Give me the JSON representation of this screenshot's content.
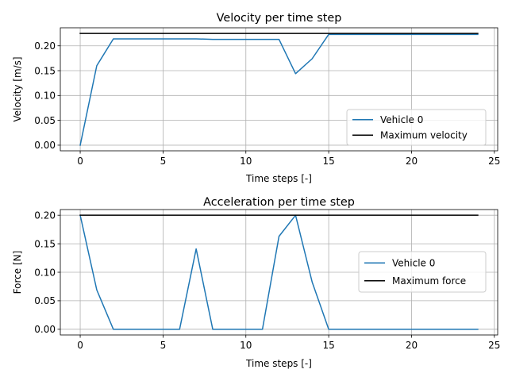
{
  "chart_data": [
    {
      "type": "line",
      "title": "Velocity per time step",
      "xlabel": "Time steps [-]",
      "ylabel": "Velocity [m/s]",
      "xlim": [
        -1.2,
        25.2
      ],
      "ylim": [
        -0.0113,
        0.2363
      ],
      "xticks": [
        0,
        5,
        10,
        15,
        20,
        25
      ],
      "yticks": [
        0.0,
        0.05,
        0.1,
        0.15,
        0.2
      ],
      "ytick_labels": [
        "0.00",
        "0.05",
        "0.10",
        "0.15",
        "0.20"
      ],
      "grid": true,
      "legend_position": "lower-right",
      "series": [
        {
          "name": "Vehicle 0",
          "color": "#1f77b4",
          "x": [
            0,
            1,
            2,
            3,
            4,
            5,
            6,
            7,
            8,
            9,
            10,
            11,
            12,
            13,
            14,
            15,
            16,
            17,
            18,
            19,
            20,
            21,
            22,
            23,
            24
          ],
          "y": [
            0.0,
            0.16,
            0.214,
            0.214,
            0.214,
            0.214,
            0.214,
            0.214,
            0.213,
            0.213,
            0.213,
            0.213,
            0.213,
            0.144,
            0.174,
            0.223,
            0.223,
            0.223,
            0.223,
            0.223,
            0.223,
            0.223,
            0.223,
            0.223,
            0.223
          ]
        },
        {
          "name": "Maximum velocity",
          "color": "#000000",
          "x": [
            0,
            24
          ],
          "y": [
            0.225,
            0.225
          ]
        }
      ]
    },
    {
      "type": "line",
      "title": "Acceleration per time step",
      "xlabel": "Time steps [-]",
      "ylabel": "Force [N]",
      "xlim": [
        -1.2,
        25.2
      ],
      "ylim": [
        -0.01,
        0.21
      ],
      "xticks": [
        0,
        5,
        10,
        15,
        20,
        25
      ],
      "yticks": [
        0.0,
        0.05,
        0.1,
        0.15,
        0.2
      ],
      "ytick_labels": [
        "0.00",
        "0.05",
        "0.10",
        "0.15",
        "0.20"
      ],
      "grid": true,
      "legend_position": "center-right",
      "series": [
        {
          "name": "Vehicle 0",
          "color": "#1f77b4",
          "x": [
            0,
            1,
            2,
            3,
            4,
            5,
            6,
            7,
            8,
            9,
            10,
            11,
            12,
            13,
            14,
            15,
            16,
            17,
            18,
            19,
            20,
            21,
            22,
            23,
            24
          ],
          "y": [
            0.2,
            0.069,
            0.0,
            0.0,
            0.0,
            0.0,
            0.0,
            0.141,
            0.0,
            0.0,
            0.0,
            0.0,
            0.163,
            0.2,
            0.083,
            0.0,
            0.0,
            0.0,
            0.0,
            0.0,
            0.0,
            0.0,
            0.0,
            0.0,
            0.0
          ]
        },
        {
          "name": "Maximum force",
          "color": "#000000",
          "x": [
            0,
            24
          ],
          "y": [
            0.2,
            0.2
          ]
        }
      ]
    }
  ]
}
